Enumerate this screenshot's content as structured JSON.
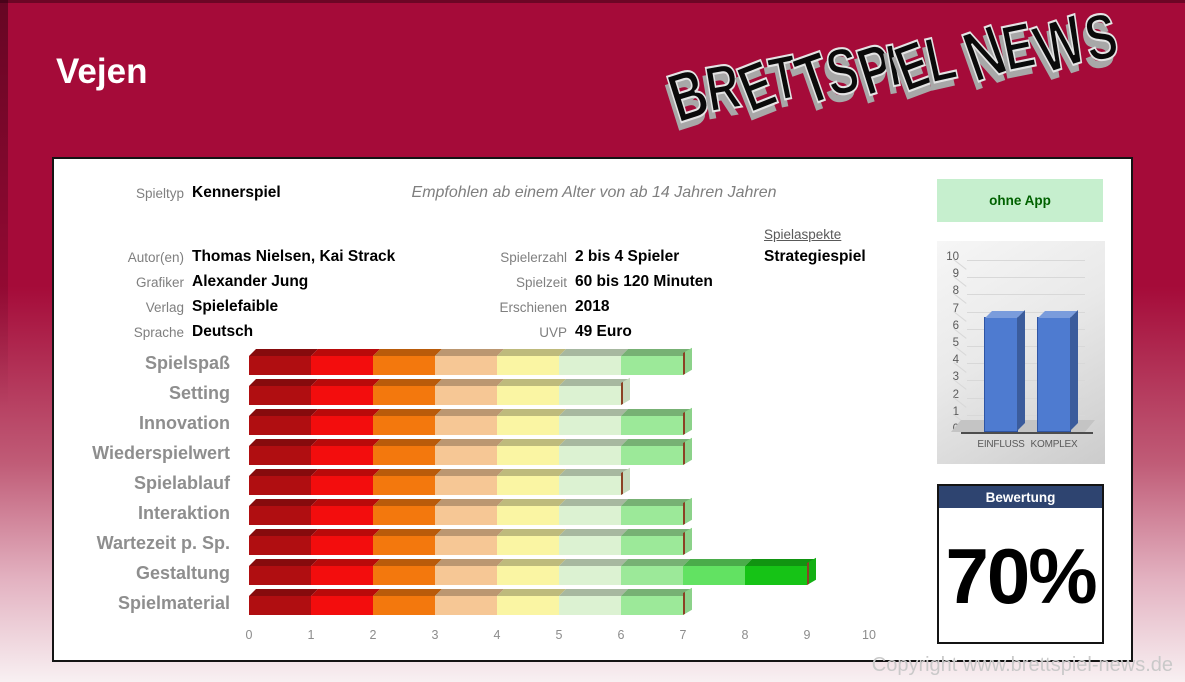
{
  "page": {
    "title": "Vejen",
    "copyright": "Copyright www.brettspiel-news.de",
    "background_color": "#A50B39",
    "panel_color": "#FFFFFF"
  },
  "logo": {
    "line": "BRETTSPIEL NEWS"
  },
  "info": {
    "spieltyp_label": "Spieltyp",
    "spieltyp_value": "Kennerspiel",
    "age_note": "Empfohlen ab einem Alter von ab 14 Jahren Jahren",
    "app_badge": "ohne App",
    "fields_left": [
      {
        "label": "Autor(en)",
        "value": "Thomas Nielsen, Kai Strack"
      },
      {
        "label": "Grafiker",
        "value": "Alexander Jung"
      },
      {
        "label": "Verlag",
        "value": "Spielefaible"
      },
      {
        "label": "Sprache",
        "value": "Deutsch"
      }
    ],
    "fields_mid": [
      {
        "label": "Spielerzahl",
        "value": "2 bis 4 Spieler"
      },
      {
        "label": "Spielzeit",
        "value": "60 bis 120 Minuten"
      },
      {
        "label": "Erschienen",
        "value": "2018"
      },
      {
        "label": "UVP",
        "value": "49 Euro"
      }
    ],
    "aspects_label": "Spielaspekte",
    "aspects_value": "Strategiespiel"
  },
  "chart_data": [
    {
      "type": "bar",
      "orientation": "horizontal",
      "categories": [
        "Spielspaß",
        "Setting",
        "Innovation",
        "Wiederspielwert",
        "Spielablauf",
        "Interaktion",
        "Wartezeit p. Sp.",
        "Gestaltung",
        "Spielmaterial"
      ],
      "values": [
        7,
        6,
        7,
        7,
        6,
        7,
        7,
        9,
        7
      ],
      "xlim": [
        0,
        10
      ],
      "x_ticks": [
        0,
        1,
        2,
        3,
        4,
        5,
        6,
        7,
        8,
        9,
        10
      ],
      "grid": false,
      "segment_colors": [
        "#B00E11",
        "#F30D0D",
        "#F3780D",
        "#F6C795",
        "#FAF5A3",
        "#DCF2D2",
        "#9CE999",
        "#62E262",
        "#16C316",
        "#0AA00A"
      ]
    },
    {
      "type": "bar",
      "orientation": "vertical",
      "style": "3d",
      "categories": [
        "EINFLUSS",
        "KOMPLEX"
      ],
      "values": [
        7,
        7
      ],
      "ylim": [
        0,
        10
      ],
      "y_ticks": [
        0,
        1,
        2,
        3,
        4,
        5,
        6,
        7,
        8,
        9,
        10
      ],
      "bar_color": "#4E7BD0"
    }
  ],
  "rating": {
    "header": "Bewertung",
    "value": "70%",
    "header_color": "#2E4470"
  }
}
